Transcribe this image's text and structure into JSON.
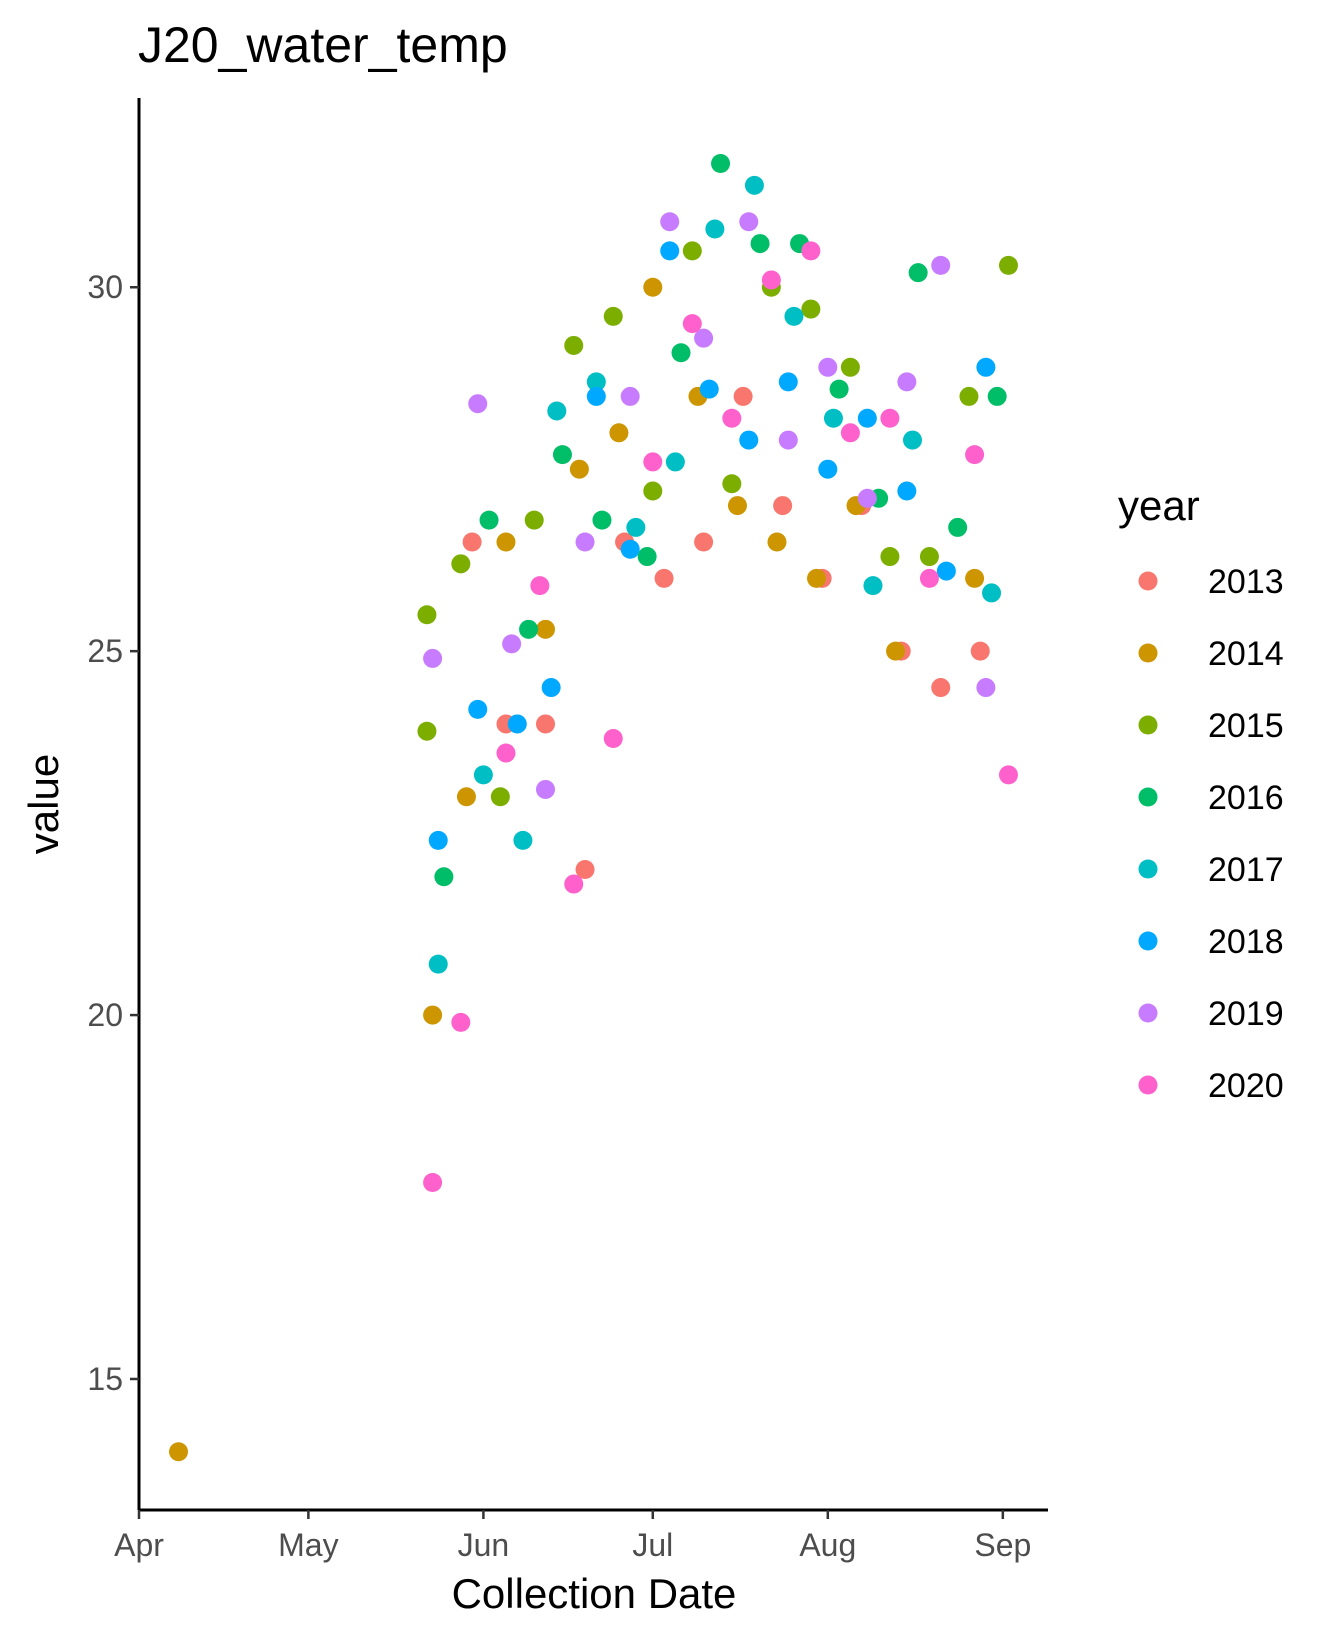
{
  "chart_data": {
    "type": "scatter",
    "title": "J20_water_temp",
    "xlabel": "Collection Date",
    "ylabel": "value",
    "x_type": "date",
    "xlim": [
      "2020-04-01",
      "2020-09-09"
    ],
    "ylim": [
      13.2,
      32.6
    ],
    "x_ticks": [
      {
        "label": "Apr",
        "date": "2020-04-01"
      },
      {
        "label": "May",
        "date": "2020-05-01"
      },
      {
        "label": "Jun",
        "date": "2020-06-01"
      },
      {
        "label": "Jul",
        "date": "2020-07-01"
      },
      {
        "label": "Aug",
        "date": "2020-08-01"
      },
      {
        "label": "Sep",
        "date": "2020-09-01"
      }
    ],
    "y_ticks": [
      15,
      20,
      25,
      30
    ],
    "grid": false,
    "legend": {
      "title": "year",
      "placement": "right"
    },
    "series": [
      {
        "name": "2013",
        "color": "#F8766D",
        "points": [
          [
            "2020-05-30",
            26.5
          ],
          [
            "2020-06-05",
            24.0
          ],
          [
            "2020-06-12",
            24.0
          ],
          [
            "2020-06-19",
            22.0
          ],
          [
            "2020-06-26",
            26.5
          ],
          [
            "2020-07-03",
            26.0
          ],
          [
            "2020-07-10",
            26.5
          ],
          [
            "2020-07-17",
            28.5
          ],
          [
            "2020-07-24",
            27.0
          ],
          [
            "2020-07-31",
            26.0
          ],
          [
            "2020-08-07",
            27.0
          ],
          [
            "2020-08-14",
            25.0
          ],
          [
            "2020-08-21",
            24.5
          ],
          [
            "2020-08-28",
            25.0
          ]
        ]
      },
      {
        "name": "2014",
        "color": "#CD9600",
        "points": [
          [
            "2020-04-08",
            14.0
          ],
          [
            "2020-05-23",
            20.0
          ],
          [
            "2020-05-29",
            23.0
          ],
          [
            "2020-06-05",
            26.5
          ],
          [
            "2020-06-12",
            25.3
          ],
          [
            "2020-06-18",
            27.5
          ],
          [
            "2020-06-25",
            28.0
          ],
          [
            "2020-07-01",
            30.0
          ],
          [
            "2020-07-09",
            28.5
          ],
          [
            "2020-07-16",
            27.0
          ],
          [
            "2020-07-23",
            26.5
          ],
          [
            "2020-07-30",
            26.0
          ],
          [
            "2020-08-06",
            27.0
          ],
          [
            "2020-08-13",
            25.0
          ],
          [
            "2020-08-27",
            26.0
          ]
        ]
      },
      {
        "name": "2015",
        "color": "#7CAE00",
        "points": [
          [
            "2020-05-22",
            25.5
          ],
          [
            "2020-05-22",
            23.9
          ],
          [
            "2020-05-28",
            26.2
          ],
          [
            "2020-06-04",
            23.0
          ],
          [
            "2020-06-10",
            26.8
          ],
          [
            "2020-06-17",
            29.2
          ],
          [
            "2020-06-24",
            29.6
          ],
          [
            "2020-07-01",
            27.2
          ],
          [
            "2020-07-08",
            30.5
          ],
          [
            "2020-07-15",
            27.3
          ],
          [
            "2020-07-22",
            30.0
          ],
          [
            "2020-07-29",
            29.7
          ],
          [
            "2020-08-05",
            28.9
          ],
          [
            "2020-08-12",
            26.3
          ],
          [
            "2020-08-19",
            26.3
          ],
          [
            "2020-08-26",
            28.5
          ],
          [
            "2020-09-02",
            30.3
          ]
        ]
      },
      {
        "name": "2016",
        "color": "#00BE67",
        "points": [
          [
            "2020-05-25",
            21.9
          ],
          [
            "2020-06-02",
            26.8
          ],
          [
            "2020-06-09",
            25.3
          ],
          [
            "2020-06-15",
            27.7
          ],
          [
            "2020-06-22",
            26.8
          ],
          [
            "2020-06-30",
            26.3
          ],
          [
            "2020-07-06",
            29.1
          ],
          [
            "2020-07-13",
            31.7
          ],
          [
            "2020-07-20",
            30.6
          ],
          [
            "2020-07-27",
            30.6
          ],
          [
            "2020-08-03",
            28.6
          ],
          [
            "2020-08-10",
            27.1
          ],
          [
            "2020-08-17",
            30.2
          ],
          [
            "2020-08-24",
            26.7
          ],
          [
            "2020-08-31",
            28.5
          ]
        ]
      },
      {
        "name": "2017",
        "color": "#00BFC4",
        "points": [
          [
            "2020-05-24",
            20.7
          ],
          [
            "2020-06-01",
            23.3
          ],
          [
            "2020-06-08",
            22.4
          ],
          [
            "2020-06-14",
            28.3
          ],
          [
            "2020-06-21",
            28.7
          ],
          [
            "2020-06-28",
            26.7
          ],
          [
            "2020-07-05",
            27.6
          ],
          [
            "2020-07-12",
            30.8
          ],
          [
            "2020-07-19",
            31.4
          ],
          [
            "2020-07-26",
            29.6
          ],
          [
            "2020-08-02",
            28.2
          ],
          [
            "2020-08-09",
            25.9
          ],
          [
            "2020-08-16",
            27.9
          ],
          [
            "2020-08-30",
            25.8
          ]
        ]
      },
      {
        "name": "2018",
        "color": "#00A9FF",
        "points": [
          [
            "2020-05-24",
            22.4
          ],
          [
            "2020-05-31",
            24.2
          ],
          [
            "2020-06-07",
            24.0
          ],
          [
            "2020-06-13",
            24.5
          ],
          [
            "2020-06-21",
            28.5
          ],
          [
            "2020-06-27",
            26.4
          ],
          [
            "2020-07-04",
            30.5
          ],
          [
            "2020-07-11",
            28.6
          ],
          [
            "2020-07-18",
            27.9
          ],
          [
            "2020-07-25",
            28.7
          ],
          [
            "2020-08-01",
            27.5
          ],
          [
            "2020-08-08",
            28.2
          ],
          [
            "2020-08-15",
            27.2
          ],
          [
            "2020-08-22",
            26.1
          ],
          [
            "2020-08-29",
            28.9
          ]
        ]
      },
      {
        "name": "2019",
        "color": "#C77CFF",
        "points": [
          [
            "2020-05-23",
            24.9
          ],
          [
            "2020-05-31",
            28.4
          ],
          [
            "2020-06-06",
            25.1
          ],
          [
            "2020-06-12",
            23.1
          ],
          [
            "2020-06-19",
            26.5
          ],
          [
            "2020-06-27",
            28.5
          ],
          [
            "2020-07-04",
            30.9
          ],
          [
            "2020-07-10",
            29.3
          ],
          [
            "2020-07-18",
            30.9
          ],
          [
            "2020-07-25",
            27.9
          ],
          [
            "2020-08-01",
            28.9
          ],
          [
            "2020-08-08",
            27.1
          ],
          [
            "2020-08-15",
            28.7
          ],
          [
            "2020-08-21",
            30.3
          ],
          [
            "2020-08-29",
            24.5
          ]
        ]
      },
      {
        "name": "2020",
        "color": "#FF61CC",
        "points": [
          [
            "2020-05-23",
            17.7
          ],
          [
            "2020-05-28",
            19.9
          ],
          [
            "2020-06-05",
            23.6
          ],
          [
            "2020-06-11",
            25.9
          ],
          [
            "2020-06-17",
            21.8
          ],
          [
            "2020-06-24",
            23.8
          ],
          [
            "2020-07-01",
            27.6
          ],
          [
            "2020-07-08",
            29.5
          ],
          [
            "2020-07-15",
            28.2
          ],
          [
            "2020-07-22",
            30.1
          ],
          [
            "2020-07-29",
            30.5
          ],
          [
            "2020-08-05",
            28.0
          ],
          [
            "2020-08-12",
            28.2
          ],
          [
            "2020-08-19",
            26.0
          ],
          [
            "2020-08-27",
            27.7
          ],
          [
            "2020-09-02",
            23.3
          ]
        ]
      }
    ]
  }
}
